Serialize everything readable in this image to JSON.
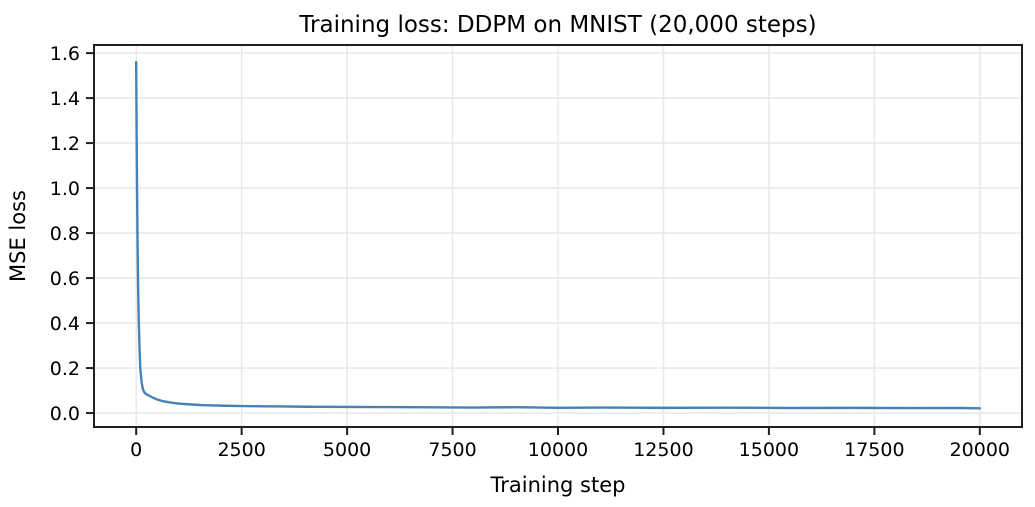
{
  "chart_data": {
    "type": "line",
    "title": "Training loss: DDPM on MNIST (20,000 steps)",
    "xlabel": "Training step",
    "ylabel": "MSE loss",
    "x": [
      0,
      15,
      30,
      45,
      60,
      80,
      100,
      130,
      160,
      200,
      250,
      300,
      400,
      500,
      650,
      800,
      1000,
      1300,
      1600,
      2000,
      2500,
      3000,
      3500,
      4000,
      5000,
      6000,
      7000,
      8000,
      9000,
      10000,
      11000,
      12500,
      14000,
      15500,
      17000,
      18500,
      19500,
      20000
    ],
    "y": [
      1.56,
      1.12,
      0.8,
      0.57,
      0.42,
      0.28,
      0.19,
      0.135,
      0.105,
      0.09,
      0.083,
      0.078,
      0.068,
      0.06,
      0.052,
      0.047,
      0.042,
      0.038,
      0.035,
      0.033,
      0.031,
      0.03,
      0.0295,
      0.028,
      0.027,
      0.0265,
      0.0255,
      0.0245,
      0.026,
      0.0235,
      0.0245,
      0.023,
      0.024,
      0.0225,
      0.023,
      0.022,
      0.0225,
      0.021
    ],
    "xlim": [
      -1000,
      21000
    ],
    "ylim": [
      -0.062,
      1.636
    ],
    "xticks": [
      0,
      2500,
      5000,
      7500,
      10000,
      12500,
      15000,
      17500,
      20000
    ],
    "xtick_labels": [
      "0",
      "2500",
      "5000",
      "7500",
      "10000",
      "12500",
      "15000",
      "17500",
      "20000"
    ],
    "yticks": [
      0.0,
      0.2,
      0.4,
      0.6,
      0.8,
      1.0,
      1.2,
      1.4,
      1.6
    ],
    "ytick_labels": [
      "0.0",
      "0.2",
      "0.4",
      "0.6",
      "0.8",
      "1.0",
      "1.2",
      "1.4",
      "1.6"
    ],
    "grid": true,
    "legend": null,
    "colors": {
      "line": "#4682b4",
      "grid": "#e9e9e9",
      "axis": "#1f1f1f",
      "text": "#000000",
      "background": "#ffffff"
    }
  }
}
